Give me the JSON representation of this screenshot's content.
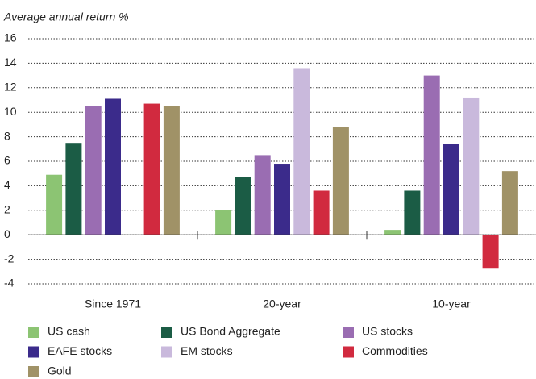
{
  "chart_data": {
    "type": "bar",
    "y_label": "Average annual return %",
    "categories": [
      "Since 1971",
      "20-year",
      "10-year"
    ],
    "series": [
      {
        "name": "US cash",
        "color": "#8cc473",
        "values": [
          4.9,
          2.0,
          0.4
        ]
      },
      {
        "name": "US Bond Aggregate",
        "color": "#1b5c45",
        "values": [
          7.5,
          4.7,
          3.6
        ]
      },
      {
        "name": "US stocks",
        "color": "#9a6db2",
        "values": [
          10.5,
          6.5,
          13.0
        ]
      },
      {
        "name": "EAFE stocks",
        "color": "#3b2b8b",
        "values": [
          11.1,
          5.8,
          7.4
        ]
      },
      {
        "name": "EM stocks",
        "color": "#c9b9dc",
        "values": [
          null,
          13.6,
          11.2
        ]
      },
      {
        "name": "Commodities",
        "color": "#d12a3f",
        "values": [
          10.7,
          3.6,
          -2.7
        ]
      },
      {
        "name": "Gold",
        "color": "#a09267",
        "values": [
          10.5,
          8.8,
          5.2
        ]
      }
    ],
    "ylim": [
      -4,
      16
    ],
    "yticks": [
      -4,
      -2,
      0,
      2,
      4,
      6,
      8,
      10,
      12,
      14,
      16
    ],
    "grid": true
  }
}
